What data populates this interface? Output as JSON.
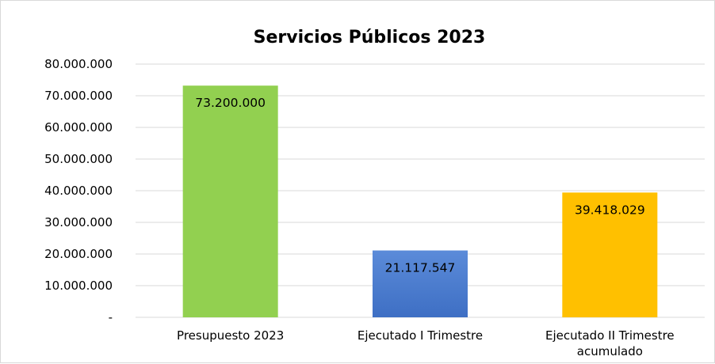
{
  "chart_data": {
    "type": "bar",
    "title": "Servicios Públicos 2023",
    "categories": [
      [
        "Presupuesto 2023"
      ],
      [
        "Ejecutado I Trimestre"
      ],
      [
        "Ejecutado II Trimestre",
        "acumulado"
      ]
    ],
    "values": [
      73200000,
      21117547,
      39418029
    ],
    "value_labels": [
      "73.200.000",
      "21.117.547",
      "39.418.029"
    ],
    "bar_colors": [
      "#92d050",
      "#3e6fc4",
      "#ffc000"
    ],
    "bar_gradient_colors": [
      null,
      "#5b8bd9",
      null
    ],
    "ylim": [
      0,
      80000000
    ],
    "y_ticks": [
      0,
      10000000,
      20000000,
      30000000,
      40000000,
      50000000,
      60000000,
      70000000,
      80000000
    ],
    "y_tick_labels": [
      "-",
      "10.000.000",
      "20.000.000",
      "30.000.000",
      "40.000.000",
      "50.000.000",
      "60.000.000",
      "70.000.000",
      "80.000.000"
    ],
    "grid": true,
    "legend": "none",
    "gridline_color": "#d9d9d9"
  }
}
